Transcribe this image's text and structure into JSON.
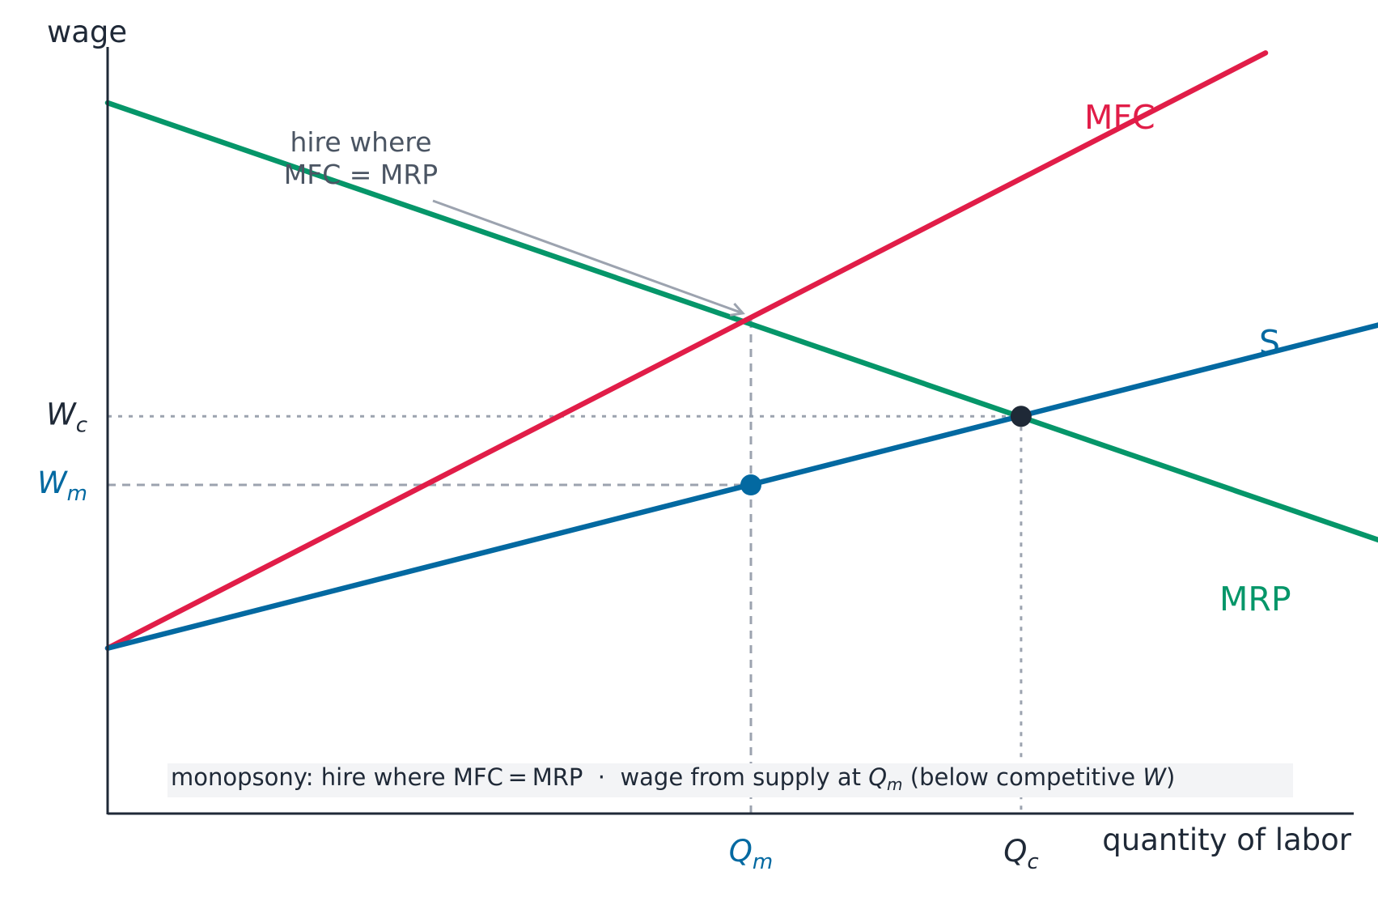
{
  "chart_data": {
    "type": "line",
    "title": "",
    "xlabel": "quantity of labor",
    "ylabel": "wage",
    "xlim": [
      0,
      10
    ],
    "ylim": [
      0,
      10
    ],
    "grid": false,
    "series": [
      {
        "name": "MRP",
        "color": "#059669",
        "x": [
          0,
          10
        ],
        "y": [
          10,
          2.9
        ]
      },
      {
        "name": "MFC",
        "color": "#e11d48",
        "x": [
          0,
          9
        ],
        "y": [
          1.25,
          10.8
        ]
      },
      {
        "name": "S",
        "color": "#0369a1",
        "x": [
          0,
          10
        ],
        "y": [
          1.25,
          6.5
        ]
      }
    ],
    "points": [
      {
        "name": "monopsony",
        "x": 5,
        "y": 3.87,
        "color": "#0369a1"
      },
      {
        "name": "competitive",
        "x": 7.1,
        "y": 4.97,
        "color": "#1f2937"
      }
    ],
    "x_ticks": [
      {
        "base": "Q",
        "sub": "m",
        "x": 5,
        "color": "#0369a1"
      },
      {
        "base": "Q",
        "sub": "c",
        "x": 7.1,
        "color": "#1f2937"
      }
    ],
    "y_ticks": [
      {
        "base": "W",
        "sub": "c",
        "y": 4.97,
        "color": "#1f2937"
      },
      {
        "base": "W",
        "sub": "m",
        "y": 3.87,
        "color": "#0369a1"
      }
    ],
    "annotation": {
      "lines": [
        "hire where",
        "MFC = MRP"
      ],
      "target_x": 5,
      "target_y": 6.52
    },
    "footnote": {
      "part1": "monopsony: hire where MFC = MRP  ·  wage from supply at ",
      "q_base": "Q",
      "q_sub": "m",
      "part2": " (below competitive ",
      "w": "W",
      "part3": ")"
    }
  }
}
